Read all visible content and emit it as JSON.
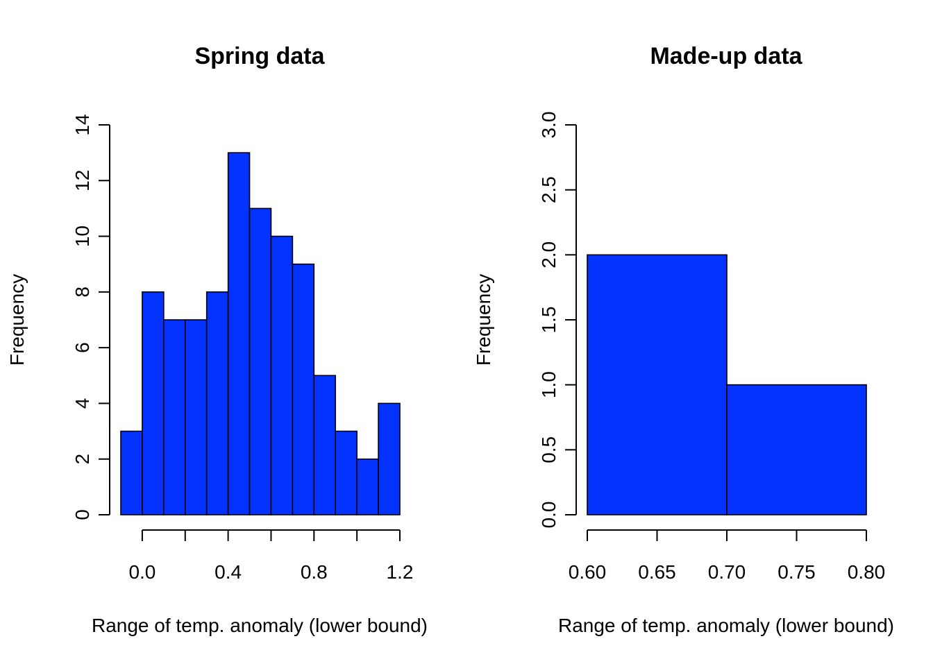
{
  "chart_data": [
    {
      "type": "bar",
      "subtype": "histogram",
      "title": "Spring data",
      "xlabel": "Range of temp. anomaly (lower bound)",
      "ylabel": "Frequency",
      "bar_color": "#0433ff",
      "bin_width": 0.1,
      "bins_left": [
        -0.1,
        0.0,
        0.1,
        0.2,
        0.3,
        0.4,
        0.5,
        0.6,
        0.7,
        0.8,
        0.9,
        1.0,
        1.1
      ],
      "values": [
        3,
        8,
        7,
        7,
        8,
        13,
        11,
        10,
        9,
        5,
        3,
        2,
        4
      ],
      "xlim": [
        -0.1,
        1.2
      ],
      "ylim": [
        0,
        14
      ],
      "x_ticks": [
        0.0,
        0.2,
        0.4,
        0.6,
        0.8,
        1.0,
        1.2
      ],
      "x_tick_labels": [
        "0.0",
        "",
        "0.4",
        "",
        "0.8",
        "",
        "1.2"
      ],
      "y_ticks": [
        0,
        2,
        4,
        6,
        8,
        10,
        12,
        14
      ],
      "y_tick_labels": [
        "0",
        "2",
        "4",
        "6",
        "8",
        "10",
        "12",
        "14"
      ],
      "grid": false
    },
    {
      "type": "bar",
      "subtype": "histogram",
      "title": "Made-up data",
      "xlabel": "Range of temp. anomaly (lower bound)",
      "ylabel": "Frequency",
      "bar_color": "#0433ff",
      "bin_width": 0.1,
      "bins_left": [
        0.6,
        0.7
      ],
      "values": [
        2,
        1
      ],
      "xlim": [
        0.6,
        0.8
      ],
      "ylim": [
        0,
        3
      ],
      "x_ticks": [
        0.6,
        0.65,
        0.7,
        0.75,
        0.8
      ],
      "x_tick_labels": [
        "0.60",
        "0.65",
        "0.70",
        "0.75",
        "0.80"
      ],
      "y_ticks": [
        0,
        0.5,
        1,
        1.5,
        2,
        2.5,
        3
      ],
      "y_tick_labels": [
        "0.0",
        "0.5",
        "1.0",
        "1.5",
        "2.0",
        "2.5",
        "3.0"
      ],
      "grid": false
    }
  ]
}
